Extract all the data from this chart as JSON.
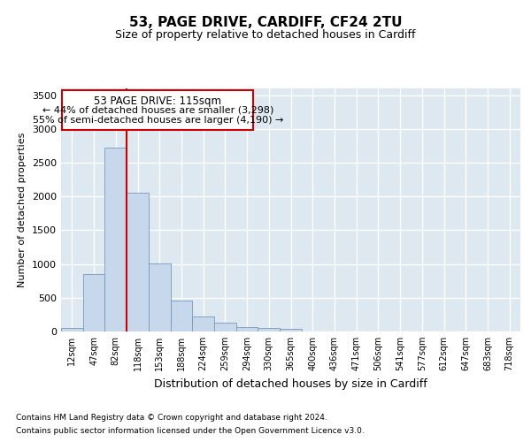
{
  "title1": "53, PAGE DRIVE, CARDIFF, CF24 2TU",
  "title2": "Size of property relative to detached houses in Cardiff",
  "xlabel": "Distribution of detached houses by size in Cardiff",
  "ylabel": "Number of detached properties",
  "footnote1": "Contains HM Land Registry data © Crown copyright and database right 2024.",
  "footnote2": "Contains public sector information licensed under the Open Government Licence v3.0.",
  "annotation_line1": "53 PAGE DRIVE: 115sqm",
  "annotation_line2": "← 44% of detached houses are smaller (3,298)",
  "annotation_line3": "55% of semi-detached houses are larger (4,190) →",
  "bar_color": "#c8d8ec",
  "bar_edge_color": "#7799bb",
  "vline_color": "#cc0000",
  "annotation_box_color": "#cc0000",
  "background_color": "#dde8f0",
  "grid_color": "#ffffff",
  "ylim": [
    0,
    3600
  ],
  "yticks": [
    0,
    500,
    1000,
    1500,
    2000,
    2500,
    3000,
    3500
  ],
  "bin_labels": [
    "12sqm",
    "47sqm",
    "82sqm",
    "118sqm",
    "153sqm",
    "188sqm",
    "224sqm",
    "259sqm",
    "294sqm",
    "330sqm",
    "365sqm",
    "400sqm",
    "436sqm",
    "471sqm",
    "506sqm",
    "541sqm",
    "577sqm",
    "612sqm",
    "647sqm",
    "683sqm",
    "718sqm"
  ],
  "bar_heights": [
    55,
    850,
    2720,
    2060,
    1005,
    455,
    225,
    135,
    70,
    55,
    35,
    0,
    0,
    0,
    0,
    0,
    0,
    0,
    0,
    0,
    0
  ],
  "vline_x_index": 2.5
}
